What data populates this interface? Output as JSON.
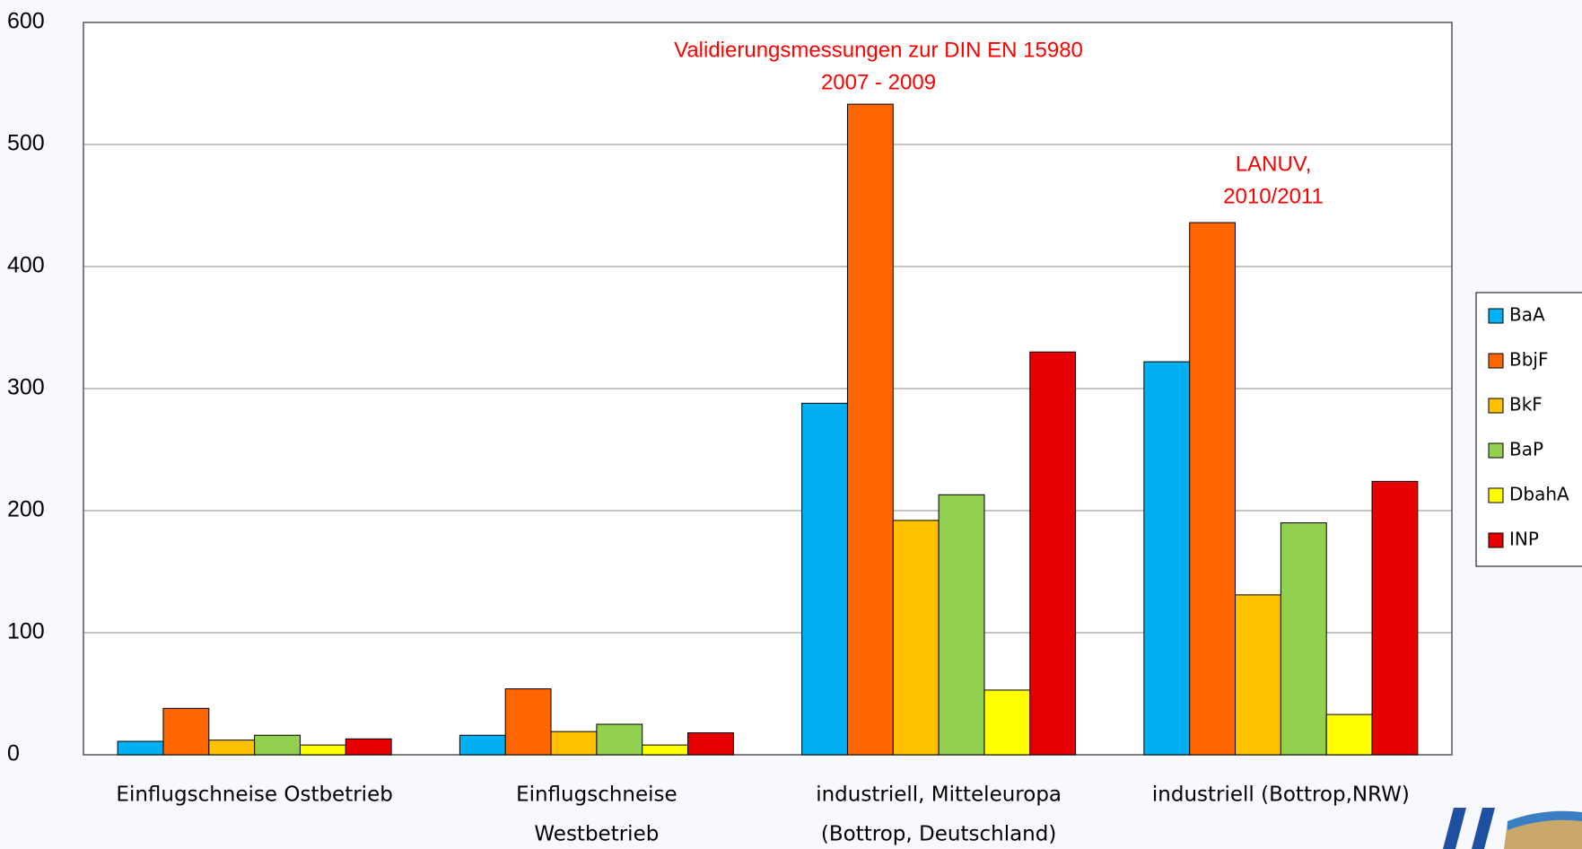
{
  "chart_data": {
    "type": "bar",
    "categories": [
      [
        "Einflugschneise  Ostbetrieb"
      ],
      [
        "Einflugschneise",
        "Westbetrieb"
      ],
      [
        "industriell,  Mitteleuropa",
        "(Bottrop, Deutschland)"
      ],
      [
        "industriell (Bottrop,NRW)"
      ]
    ],
    "series": [
      {
        "name": "BaA",
        "color": "#00b0f0",
        "values": [
          11,
          16,
          288,
          322
        ]
      },
      {
        "name": "BbjF",
        "color": "#ff6600",
        "values": [
          38,
          54,
          533,
          436
        ]
      },
      {
        "name": "BkF",
        "color": "#ffc000",
        "values": [
          12,
          19,
          192,
          131
        ]
      },
      {
        "name": "BaP",
        "color": "#92d050",
        "values": [
          16,
          25,
          213,
          190
        ]
      },
      {
        "name": "DbahA",
        "color": "#ffff00",
        "values": [
          8,
          8,
          53,
          33
        ]
      },
      {
        "name": "INP",
        "color": "#e60000",
        "values": [
          13,
          18,
          330,
          224
        ]
      }
    ],
    "annotations": [
      [
        "Validierungsmessungen zur DIN EN 15980",
        "2007 - 2009"
      ],
      [
        "LANUV,",
        "2010/2011"
      ]
    ],
    "ylim": [
      0,
      600
    ],
    "yticks": [
      0,
      100,
      200,
      300,
      400,
      500,
      600
    ],
    "grid": true
  }
}
